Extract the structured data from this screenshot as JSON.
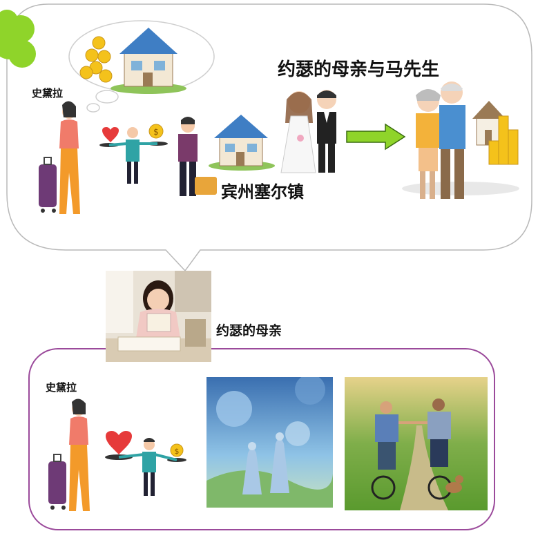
{
  "top_bubble": {
    "title": "约瑟的母亲与马先生",
    "place": "宾州塞尔镇",
    "woman_name": "史黛拉"
  },
  "reader": {
    "label": "约瑟的母亲"
  },
  "bottom_panel": {
    "woman_name": "史黛拉"
  },
  "colors": {
    "bubble_border": "#b9b9b9",
    "panel_border": "#9b4a9b",
    "arrow_green": "#8fd42a",
    "cloud_green": "#8fd42a"
  }
}
